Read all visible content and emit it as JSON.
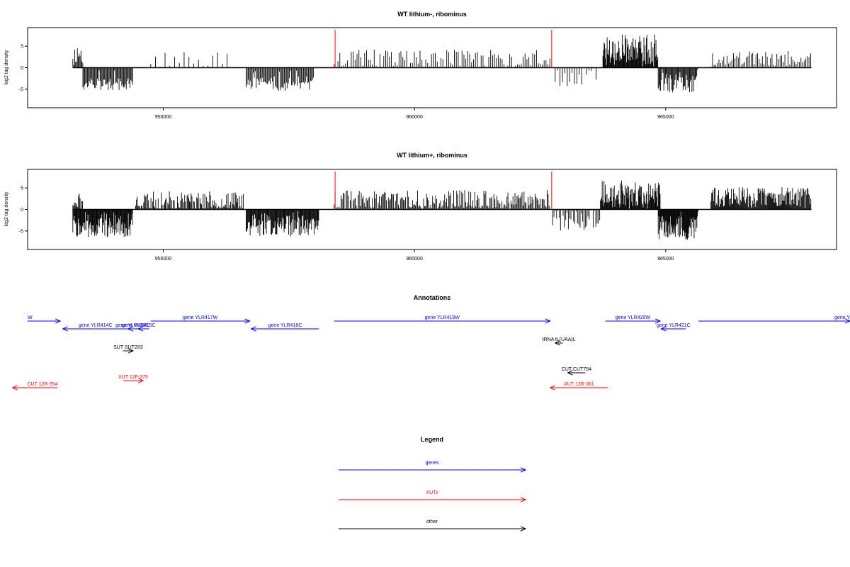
{
  "colors": {
    "gene": "#0000ff",
    "xut": "#ff0000",
    "other": "#000000",
    "marker": "#ff0000",
    "bars": "#000000"
  },
  "chart_data": [
    {
      "type": "bar",
      "title": "WT lithium-, ribominus",
      "ylabel": "log2 tag density",
      "xlim": [
        952300,
        968400
      ],
      "ylim": [
        -9.3,
        9.3
      ],
      "xticks": [
        955000,
        960000,
        965000
      ],
      "xtick_labels": [
        "955000",
        "960000",
        "965000"
      ],
      "yticks": [
        5,
        0,
        -5
      ],
      "ytick_labels": [
        "5",
        "0",
        "-5"
      ],
      "markers": [
        {
          "x": 958420,
          "y": 8.8
        },
        {
          "x": 962730,
          "y": 8.8
        }
      ],
      "segments": [
        {
          "start": 953200,
          "end": 953400,
          "mean": 3.2,
          "amp": 1.6,
          "step": 18,
          "seed": 11
        },
        {
          "start": 953400,
          "end": 954400,
          "mean": -3.8,
          "amp": 1.0,
          "step": 18,
          "seed": 12
        },
        {
          "start": 954750,
          "end": 956300,
          "mean": 1.8,
          "amp": 1.3,
          "step": 95,
          "seed": 13
        },
        {
          "start": 956650,
          "end": 958000,
          "mean": -3.6,
          "amp": 1.3,
          "step": 20,
          "seed": 14
        },
        {
          "start": 958400,
          "end": 962700,
          "mean": 2.0,
          "amp": 1.6,
          "step": 38,
          "seed": 15
        },
        {
          "start": 962800,
          "end": 963650,
          "mean": -2.0,
          "amp": 1.8,
          "step": 48,
          "seed": 16
        },
        {
          "start": 963750,
          "end": 964850,
          "mean": 4.4,
          "amp": 2.4,
          "step": 12,
          "seed": 17
        },
        {
          "start": 964850,
          "end": 965650,
          "mean": -3.6,
          "amp": 1.6,
          "step": 16,
          "seed": 18
        },
        {
          "start": 965900,
          "end": 967900,
          "mean": 2.2,
          "amp": 1.2,
          "step": 32,
          "seed": 19
        }
      ]
    },
    {
      "type": "bar",
      "title": "WT lithium+, ribominus",
      "ylabel": "log2 tag density",
      "xlim": [
        952300,
        968400
      ],
      "ylim": [
        -9.3,
        9.3
      ],
      "xticks": [
        955000,
        960000,
        965000
      ],
      "xtick_labels": [
        "955000",
        "960000",
        "965000"
      ],
      "yticks": [
        5,
        0,
        -5
      ],
      "ytick_labels": [
        "5",
        "0",
        "-5"
      ],
      "markers": [
        {
          "x": 958420,
          "y": 8.8
        },
        {
          "x": 962730,
          "y": 8.8
        }
      ],
      "segments": [
        {
          "start": 953200,
          "end": 953400,
          "mean": 2.0,
          "amp": 1.4,
          "step": 16,
          "seed": 21
        },
        {
          "start": 953200,
          "end": 954400,
          "mean": -4.2,
          "amp": 1.6,
          "step": 12,
          "seed": 22
        },
        {
          "start": 954450,
          "end": 956600,
          "mean": 2.0,
          "amp": 1.6,
          "step": 16,
          "seed": 23
        },
        {
          "start": 956650,
          "end": 958100,
          "mean": -3.9,
          "amp": 1.7,
          "step": 13,
          "seed": 24
        },
        {
          "start": 958400,
          "end": 962700,
          "mean": 2.3,
          "amp": 1.6,
          "step": 20,
          "seed": 25
        },
        {
          "start": 962750,
          "end": 963700,
          "mean": -2.4,
          "amp": 1.8,
          "step": 26,
          "seed": 26
        },
        {
          "start": 963700,
          "end": 964900,
          "mean": 3.6,
          "amp": 2.2,
          "step": 12,
          "seed": 27
        },
        {
          "start": 964850,
          "end": 965650,
          "mean": -4.3,
          "amp": 2.0,
          "step": 11,
          "seed": 28
        },
        {
          "start": 965900,
          "end": 967900,
          "mean": 3.0,
          "amp": 1.6,
          "step": 14,
          "seed": 29
        }
      ]
    }
  ],
  "annotations": {
    "title": "Annotations",
    "genes": [
      {
        "label": "W",
        "start": 952300,
        "end": 952950,
        "strand": "+",
        "row": 0,
        "label_pos": "start"
      },
      {
        "label": "gene YLR414C",
        "start": 953000,
        "end": 954300,
        "strand": "-",
        "row": 1,
        "label_pos": "mid"
      },
      {
        "label": "gene YLR415C",
        "start": 954300,
        "end": 954720,
        "strand": "-",
        "row": 1,
        "label_pos": "mid"
      },
      {
        "label": "gene YLR416C",
        "start": 954500,
        "end": 954720,
        "strand": "-",
        "row": 1,
        "label_pos": "end"
      },
      {
        "label": "gene YLR417W",
        "start": 954750,
        "end": 956720,
        "strand": "+",
        "row": 0,
        "label_pos": "mid"
      },
      {
        "label": "gene YLR418C",
        "start": 956750,
        "end": 958100,
        "strand": "-",
        "row": 1,
        "label_pos": "mid"
      },
      {
        "label": "gene YLR419W",
        "start": 958400,
        "end": 962700,
        "strand": "+",
        "row": 0,
        "label_pos": "mid"
      },
      {
        "label": "gene YLR420W",
        "start": 963800,
        "end": 964890,
        "strand": "+",
        "row": 0,
        "label_pos": "mid"
      },
      {
        "label": "gene YLR421C",
        "start": 964910,
        "end": 965400,
        "strand": "-",
        "row": 1,
        "label_pos": "mid"
      },
      {
        "label": "gene Y",
        "start": 965650,
        "end": 968900,
        "strand": "+",
        "row": 0,
        "label_pos": "end"
      }
    ],
    "others": [
      {
        "label": "SUT SUT283",
        "start": 954200,
        "end": 954400,
        "strand": "+",
        "row": 2,
        "label_pos": "mid"
      },
      {
        "label": "tRNA tL(UAA)L",
        "start": 962800,
        "end": 962950,
        "strand": "-",
        "row": 3,
        "label_pos": "mid"
      },
      {
        "label": "CUT CUT754",
        "start": 963050,
        "end": 963400,
        "strand": "-",
        "row": 5,
        "label_pos": "mid"
      }
    ],
    "xuts": [
      {
        "label": "XUT 12F-375",
        "start": 954200,
        "end": 954600,
        "strand": "+",
        "row": 4,
        "label_pos": "mid"
      },
      {
        "label": "CUT 12R-354",
        "start": 952000,
        "end": 952900,
        "strand": "-",
        "row": 6,
        "label_pos": "end"
      },
      {
        "label": "XUT 12R-361",
        "start": 962700,
        "end": 963850,
        "strand": "-",
        "row": 6,
        "label_pos": "mid"
      }
    ]
  },
  "legend": {
    "title": "Legend",
    "items": [
      {
        "label": "genes",
        "kind": "gene"
      },
      {
        "label": "XUTs",
        "kind": "xut"
      },
      {
        "label": "other",
        "kind": "other"
      }
    ]
  }
}
